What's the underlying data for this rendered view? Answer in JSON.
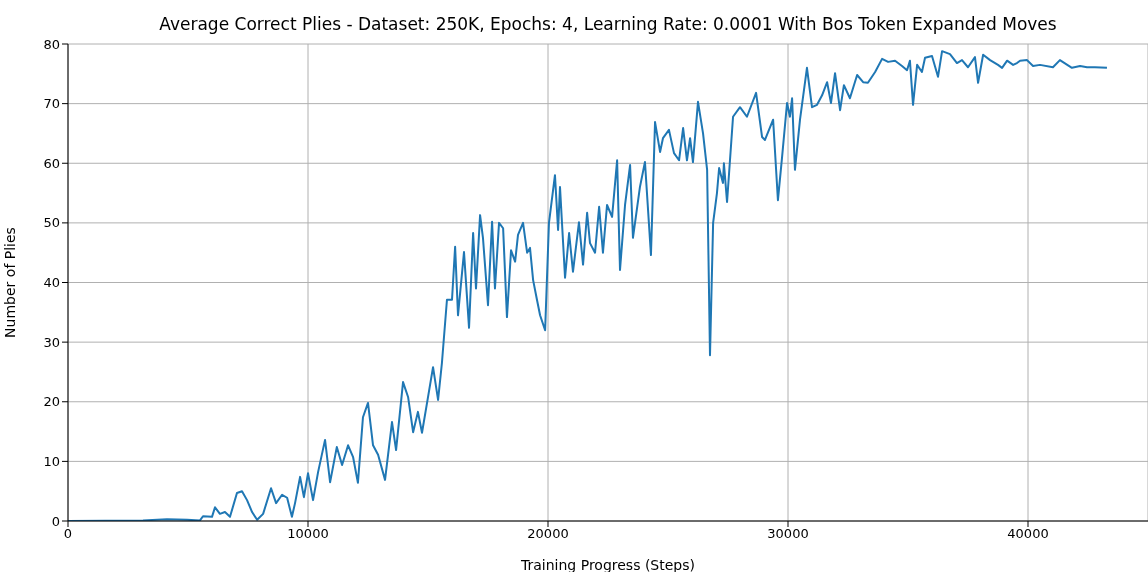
{
  "chart_data": {
    "type": "line",
    "title": "Average Correct Plies - Dataset: 250K, Epochs: 4, Learning Rate: 0.0001 With Bos Token Expanded Moves",
    "xlabel": "Training Progress (Steps)",
    "ylabel": "Number of Plies",
    "x": [
      0,
      3125,
      4125,
      4960,
      5500,
      5625,
      6000,
      6125,
      6330,
      6540,
      6750,
      7040,
      7250,
      7460,
      7670,
      7880,
      8130,
      8460,
      8670,
      8920,
      9130,
      9330,
      9460,
      9670,
      9830,
      10000,
      10210,
      10420,
      10710,
      10920,
      11200,
      11420,
      11670,
      11880,
      12080,
      12290,
      12500,
      12710,
      12920,
      13210,
      13500,
      13670,
      13960,
      14170,
      14380,
      14580,
      14750,
      14960,
      15210,
      15420,
      15580,
      15790,
      16000,
      16130,
      16250,
      16500,
      16710,
      16880,
      17000,
      17170,
      17290,
      17500,
      17670,
      17790,
      17960,
      18130,
      18290,
      18460,
      18630,
      18750,
      18960,
      19130,
      19250,
      19380,
      19540,
      19670,
      19880,
      20040,
      20290,
      20420,
      20500,
      20710,
      20880,
      21040,
      21290,
      21460,
      21630,
      21750,
      21960,
      22130,
      22290,
      22460,
      22670,
      22880,
      23000,
      23210,
      23420,
      23540,
      23830,
      24040,
      24290,
      24460,
      24670,
      24790,
      25040,
      25250,
      25460,
      25630,
      25790,
      25920,
      26040,
      26250,
      26460,
      26630,
      26750,
      26880,
      27040,
      27130,
      27290,
      27330,
      27460,
      27710,
      28000,
      28290,
      28670,
      28920,
      29040,
      29380,
      29580,
      29750,
      29960,
      30080,
      30170,
      30290,
      30500,
      30790,
      31000,
      31210,
      31420,
      31630,
      31790,
      31960,
      32170,
      32330,
      32580,
      32880,
      33130,
      33330,
      33630,
      33920,
      34170,
      34460,
      34750,
      34960,
      35080,
      35210,
      35380,
      35580,
      35710,
      36000,
      36250,
      36420,
      36750,
      37040,
      37250,
      37500,
      37790,
      37920,
      38130,
      38420,
      38750,
      38920,
      39130,
      39380,
      39540,
      39670,
      39960,
      40210,
      40500,
      41040,
      41330,
      41830,
      42170,
      42460,
      42790,
      43290
    ],
    "series": [
      {
        "color": "#1f77b4",
        "values": [
          0,
          0.1,
          0.3,
          0.2,
          0.1,
          0.8,
          0.7,
          2.3,
          1.2,
          1.5,
          0.7,
          4.7,
          5,
          3.5,
          1.5,
          0.2,
          1.2,
          5.5,
          3,
          4.4,
          3.9,
          0.7,
          3,
          7.4,
          4,
          8,
          3.5,
          8.2,
          13.6,
          6.5,
          12.4,
          9.4,
          12.7,
          10.7,
          6.4,
          17.4,
          19.8,
          12.7,
          11.1,
          6.9,
          16.6,
          11.9,
          23.3,
          20.8,
          14.9,
          18.3,
          14.8,
          19.8,
          25.8,
          20.3,
          26.5,
          37.1,
          37.1,
          46,
          34.5,
          45.1,
          32.4,
          48.3,
          39,
          51.3,
          47.5,
          36.2,
          50.2,
          39,
          50,
          49.1,
          34.2,
          45.4,
          43.5,
          48,
          50,
          45,
          45.8,
          40.4,
          37.1,
          34.5,
          32,
          50,
          58,
          48.8,
          56,
          40.8,
          48.3,
          41.8,
          50.1,
          43,
          51.7,
          46.6,
          45,
          52.7,
          45,
          53,
          51,
          60.5,
          42.1,
          53,
          59.7,
          47.5,
          56,
          60.2,
          44.6,
          66.9,
          61.9,
          64.2,
          65.6,
          61.7,
          60.5,
          65.9,
          60.5,
          64.2,
          60.2,
          70.3,
          65,
          58.9,
          27.8,
          50,
          55,
          59.2,
          56.7,
          60,
          53.5,
          67.8,
          69.4,
          67.8,
          71.8,
          64.4,
          63.9,
          67.3,
          53.8,
          60.9,
          70.1,
          67.8,
          70.9,
          58.9,
          67.3,
          76,
          69.4,
          69.8,
          71.4,
          73.6,
          70.1,
          75.1,
          68.9,
          73.1,
          70.9,
          74.8,
          73.6,
          73.5,
          75.3,
          77.5,
          77,
          77.2,
          76.3,
          75.6,
          77.2,
          69.8,
          76.5,
          75.3,
          77.7,
          78,
          74.5,
          78.8,
          78.3,
          76.8,
          77.3,
          76.1,
          77.8,
          73.5,
          78.2,
          77.3,
          76.5,
          76,
          77.2,
          76.5,
          76.8,
          77.2,
          77.3,
          76.3,
          76.5,
          76.1,
          77.3,
          76,
          76.3,
          76.1,
          76.1,
          76
        ]
      }
    ],
    "xlim": [
      0,
      45000
    ],
    "xticks": [
      0,
      10000,
      20000,
      30000,
      40000
    ],
    "ylim": [
      0,
      80
    ],
    "yticks": [
      0,
      10,
      20,
      30,
      40,
      50,
      60,
      70,
      80
    ],
    "grid": true
  }
}
